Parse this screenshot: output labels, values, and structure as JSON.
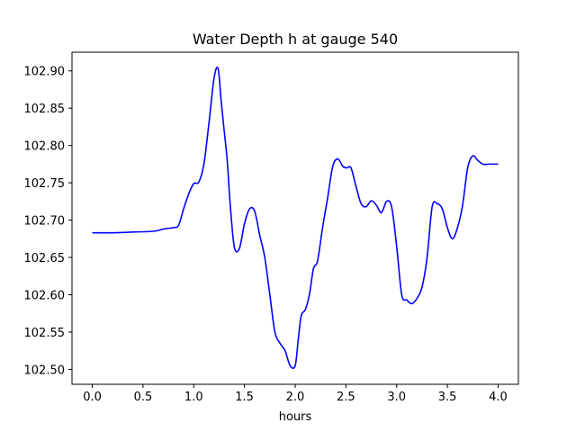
{
  "chart_data": {
    "type": "line",
    "title": "Water Depth h at gauge 540",
    "xlabel": "hours",
    "ylabel": "",
    "xlim": [
      -0.2,
      4.2
    ],
    "ylim": [
      102.48,
      102.925
    ],
    "x_ticks": [
      0.0,
      0.5,
      1.0,
      1.5,
      2.0,
      2.5,
      3.0,
      3.5,
      4.0
    ],
    "x_tick_labels": [
      "0.0",
      "0.5",
      "1.0",
      "1.5",
      "2.0",
      "2.5",
      "3.0",
      "3.5",
      "4.0"
    ],
    "y_ticks": [
      102.5,
      102.55,
      102.6,
      102.65,
      102.7,
      102.75,
      102.8,
      102.85,
      102.9
    ],
    "y_tick_labels": [
      "102.50",
      "102.55",
      "102.60",
      "102.65",
      "102.70",
      "102.75",
      "102.80",
      "102.85",
      "102.90"
    ],
    "grid": false,
    "legend": "none",
    "series": [
      {
        "color": "#0000ff",
        "x": [
          0.0,
          0.2,
          0.4,
          0.6,
          0.7,
          0.8,
          0.85,
          0.9,
          0.95,
          1.0,
          1.05,
          1.1,
          1.15,
          1.2,
          1.24,
          1.27,
          1.3,
          1.33,
          1.36,
          1.4,
          1.45,
          1.5,
          1.55,
          1.6,
          1.65,
          1.7,
          1.75,
          1.8,
          1.85,
          1.9,
          1.95,
          2.0,
          2.03,
          2.06,
          2.1,
          2.14,
          2.18,
          2.22,
          2.27,
          2.32,
          2.37,
          2.42,
          2.47,
          2.51,
          2.55,
          2.6,
          2.65,
          2.7,
          2.75,
          2.8,
          2.85,
          2.9,
          2.95,
          3.0,
          3.05,
          3.1,
          3.15,
          3.2,
          3.25,
          3.3,
          3.35,
          3.4,
          3.45,
          3.5,
          3.55,
          3.6,
          3.65,
          3.7,
          3.75,
          3.8,
          3.85,
          3.9,
          3.95,
          4.0
        ],
        "y": [
          102.683,
          102.683,
          102.684,
          102.685,
          102.688,
          102.69,
          102.693,
          102.715,
          102.735,
          102.749,
          102.751,
          102.775,
          102.83,
          102.89,
          102.903,
          102.86,
          102.82,
          102.78,
          102.72,
          102.664,
          102.662,
          102.695,
          102.715,
          102.712,
          102.68,
          102.65,
          102.6,
          102.55,
          102.535,
          102.525,
          102.505,
          102.505,
          102.54,
          102.572,
          102.58,
          102.6,
          102.635,
          102.645,
          102.69,
          102.73,
          102.772,
          102.782,
          102.772,
          102.77,
          102.77,
          102.745,
          102.722,
          102.718,
          102.726,
          102.72,
          102.71,
          102.725,
          102.718,
          102.665,
          102.6,
          102.593,
          102.588,
          102.595,
          102.61,
          102.65,
          102.718,
          102.722,
          102.715,
          102.69,
          102.675,
          102.69,
          102.72,
          102.77,
          102.786,
          102.78,
          102.775,
          102.775,
          102.775,
          102.775
        ]
      }
    ]
  }
}
